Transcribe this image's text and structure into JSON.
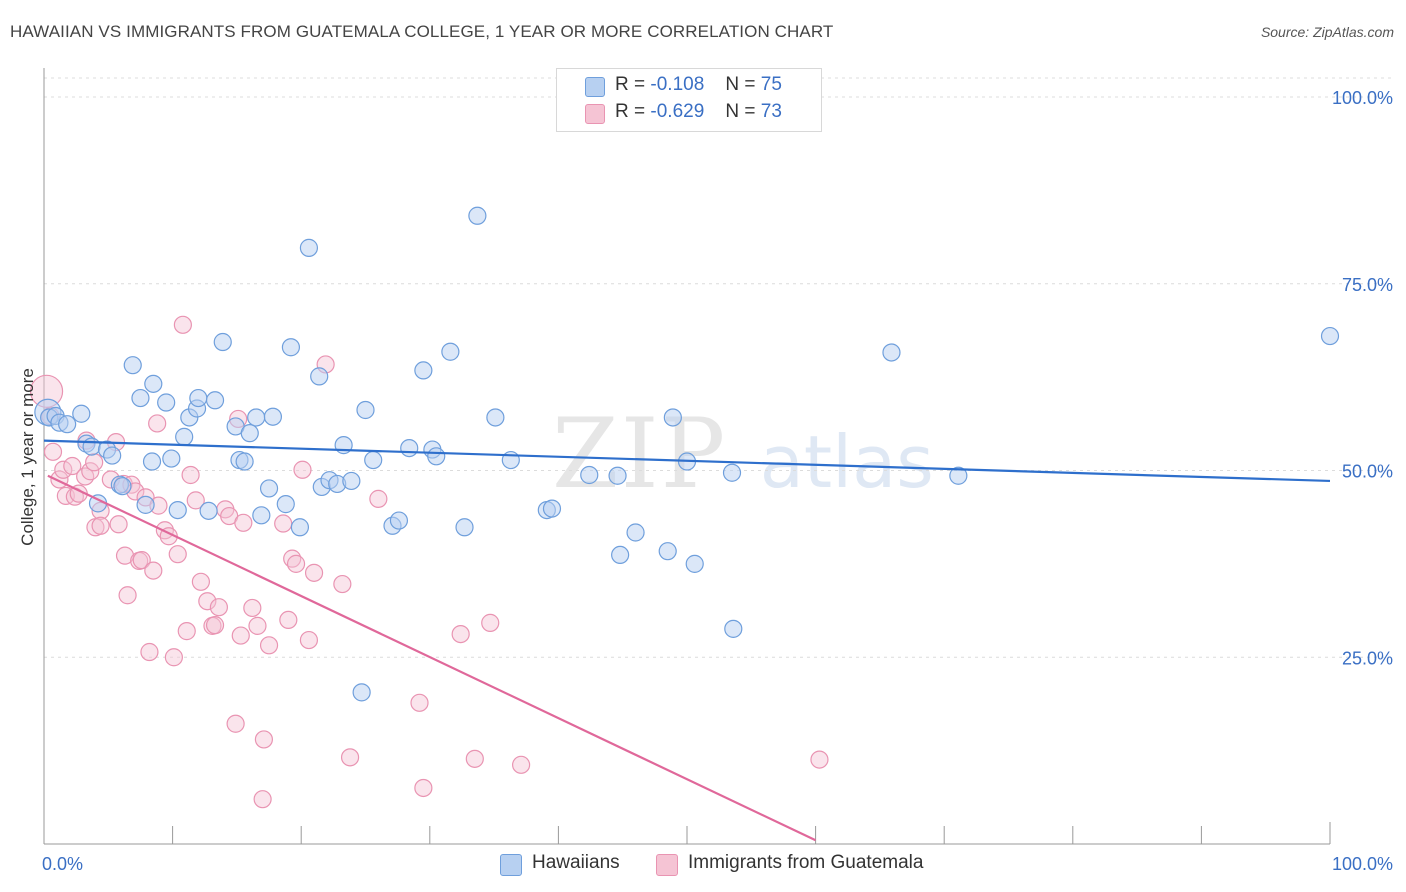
{
  "title": "HAWAIIAN VS IMMIGRANTS FROM GUATEMALA COLLEGE, 1 YEAR OR MORE CORRELATION CHART",
  "source": "Source: ZipAtlas.com",
  "watermark": {
    "zip": "ZIP",
    "atlas": "atlas"
  },
  "colors": {
    "blue": "#6f9fdc",
    "blue_fill": "#b7d0f1",
    "blue_line": "#2e6fcc",
    "pink": "#e994b2",
    "pink_fill": "#f5c4d4",
    "pink_line": "#e0689a",
    "axis_label": "#3a6fc4"
  },
  "legend": {
    "r_label": "R =",
    "n_label": "N =",
    "rows": [
      {
        "series": "Hawaiians",
        "r": "-0.108",
        "n": "75"
      },
      {
        "series": "Immigrants from Guatemala",
        "r": "-0.629",
        "n": "73"
      }
    ]
  },
  "chart_data": {
    "type": "scatter",
    "title": "HAWAIIAN VS IMMIGRANTS FROM GUATEMALA COLLEGE, 1 YEAR OR MORE CORRELATION CHART",
    "xlabel": "",
    "ylabel": "College, 1 year or more",
    "xlim": [
      0,
      100
    ],
    "ylim": [
      0,
      100
    ],
    "x_tick_labels": [
      "0.0%",
      "100.0%"
    ],
    "y_tick_labels": [
      "100.0%",
      "75.0%",
      "50.0%",
      "25.0%"
    ],
    "y_ticks": [
      100,
      75,
      50,
      25
    ],
    "grid": true,
    "legend_position": "bottom",
    "series": [
      {
        "name": "Hawaiians",
        "trend": {
          "x": [
            0,
            100
          ],
          "y": [
            54.0,
            48.6
          ]
        },
        "points": [
          [
            0.3,
            57.8
          ],
          [
            0.4,
            57.1
          ],
          [
            0.9,
            57.3
          ],
          [
            1.2,
            56.4
          ],
          [
            1.8,
            56.2
          ],
          [
            2.9,
            57.6
          ],
          [
            3.3,
            53.6
          ],
          [
            3.7,
            53.2
          ],
          [
            4.2,
            45.6
          ],
          [
            4.9,
            52.8
          ],
          [
            5.3,
            52.0
          ],
          [
            5.9,
            48.1
          ],
          [
            6.1,
            47.9
          ],
          [
            6.9,
            64.1
          ],
          [
            7.5,
            59.7
          ],
          [
            7.9,
            45.4
          ],
          [
            8.4,
            51.2
          ],
          [
            8.5,
            61.6
          ],
          [
            9.5,
            59.1
          ],
          [
            9.9,
            51.6
          ],
          [
            10.4,
            44.7
          ],
          [
            10.9,
            54.5
          ],
          [
            11.3,
            57.1
          ],
          [
            11.9,
            58.3
          ],
          [
            12.0,
            59.7
          ],
          [
            12.8,
            44.6
          ],
          [
            13.3,
            59.4
          ],
          [
            13.9,
            67.2
          ],
          [
            14.9,
            55.9
          ],
          [
            15.2,
            51.4
          ],
          [
            15.6,
            51.2
          ],
          [
            16.0,
            55.0
          ],
          [
            16.5,
            57.1
          ],
          [
            16.9,
            44.0
          ],
          [
            17.5,
            47.6
          ],
          [
            17.8,
            57.2
          ],
          [
            18.8,
            45.5
          ],
          [
            19.2,
            66.5
          ],
          [
            19.9,
            42.4
          ],
          [
            20.6,
            79.8
          ],
          [
            21.4,
            62.6
          ],
          [
            21.6,
            47.8
          ],
          [
            22.2,
            48.7
          ],
          [
            22.8,
            48.2
          ],
          [
            23.3,
            53.4
          ],
          [
            23.9,
            48.6
          ],
          [
            24.7,
            20.3
          ],
          [
            25.0,
            58.1
          ],
          [
            25.6,
            51.4
          ],
          [
            27.1,
            42.6
          ],
          [
            27.6,
            43.3
          ],
          [
            28.4,
            53.0
          ],
          [
            29.5,
            63.4
          ],
          [
            30.2,
            52.8
          ],
          [
            30.5,
            51.9
          ],
          [
            31.6,
            65.9
          ],
          [
            32.7,
            42.4
          ],
          [
            33.7,
            84.1
          ],
          [
            35.1,
            57.1
          ],
          [
            36.3,
            51.4
          ],
          [
            39.1,
            44.7
          ],
          [
            39.5,
            44.9
          ],
          [
            42.4,
            49.4
          ],
          [
            44.6,
            49.3
          ],
          [
            44.8,
            38.7
          ],
          [
            46.0,
            41.7
          ],
          [
            48.5,
            39.2
          ],
          [
            48.9,
            57.1
          ],
          [
            50.0,
            51.2
          ],
          [
            50.6,
            37.5
          ],
          [
            53.5,
            49.7
          ],
          [
            53.6,
            28.8
          ],
          [
            65.9,
            65.8
          ],
          [
            71.1,
            49.3
          ],
          [
            100,
            68.0
          ]
        ]
      },
      {
        "name": "Immigrants from Guatemala",
        "trend": {
          "x": [
            0.3,
            60.0
          ],
          "y": [
            49.3,
            0.5
          ]
        },
        "points": [
          [
            0.2,
            60.6
          ],
          [
            0.5,
            57.3
          ],
          [
            0.7,
            52.5
          ],
          [
            1.2,
            48.8
          ],
          [
            1.5,
            50.1
          ],
          [
            1.7,
            46.6
          ],
          [
            2.2,
            50.6
          ],
          [
            2.4,
            46.5
          ],
          [
            2.7,
            46.9
          ],
          [
            3.2,
            49.2
          ],
          [
            3.3,
            54.0
          ],
          [
            3.6,
            49.9
          ],
          [
            3.9,
            51.1
          ],
          [
            4.0,
            42.4
          ],
          [
            4.4,
            44.6
          ],
          [
            4.4,
            42.6
          ],
          [
            5.2,
            48.8
          ],
          [
            5.6,
            53.8
          ],
          [
            5.8,
            42.8
          ],
          [
            6.2,
            48.2
          ],
          [
            6.3,
            38.6
          ],
          [
            6.5,
            33.3
          ],
          [
            6.8,
            48.1
          ],
          [
            7.1,
            47.2
          ],
          [
            7.4,
            37.9
          ],
          [
            7.6,
            38.0
          ],
          [
            7.9,
            46.4
          ],
          [
            8.2,
            25.7
          ],
          [
            8.5,
            36.6
          ],
          [
            8.8,
            56.3
          ],
          [
            8.9,
            45.3
          ],
          [
            9.4,
            42.0
          ],
          [
            9.7,
            41.2
          ],
          [
            10.1,
            25.0
          ],
          [
            10.4,
            38.8
          ],
          [
            10.8,
            69.5
          ],
          [
            11.1,
            28.5
          ],
          [
            11.4,
            49.4
          ],
          [
            11.8,
            46.0
          ],
          [
            12.2,
            35.1
          ],
          [
            12.7,
            32.5
          ],
          [
            13.1,
            29.2
          ],
          [
            13.3,
            29.3
          ],
          [
            13.6,
            31.7
          ],
          [
            14.1,
            44.8
          ],
          [
            14.4,
            43.9
          ],
          [
            14.9,
            16.1
          ],
          [
            15.1,
            56.9
          ],
          [
            15.3,
            27.9
          ],
          [
            15.5,
            43.0
          ],
          [
            16.2,
            31.6
          ],
          [
            16.6,
            29.2
          ],
          [
            17.0,
            6.0
          ],
          [
            17.1,
            14.0
          ],
          [
            17.5,
            26.6
          ],
          [
            18.6,
            42.9
          ],
          [
            19.0,
            30.0
          ],
          [
            19.3,
            38.2
          ],
          [
            19.6,
            37.5
          ],
          [
            20.1,
            50.1
          ],
          [
            20.6,
            27.3
          ],
          [
            21.0,
            36.3
          ],
          [
            21.9,
            64.2
          ],
          [
            23.2,
            34.8
          ],
          [
            23.8,
            11.6
          ],
          [
            26.0,
            46.2
          ],
          [
            29.2,
            18.9
          ],
          [
            29.5,
            7.5
          ],
          [
            32.4,
            28.1
          ],
          [
            33.5,
            11.4
          ],
          [
            34.7,
            29.6
          ],
          [
            37.1,
            10.6
          ],
          [
            60.3,
            11.3
          ]
        ]
      }
    ]
  }
}
